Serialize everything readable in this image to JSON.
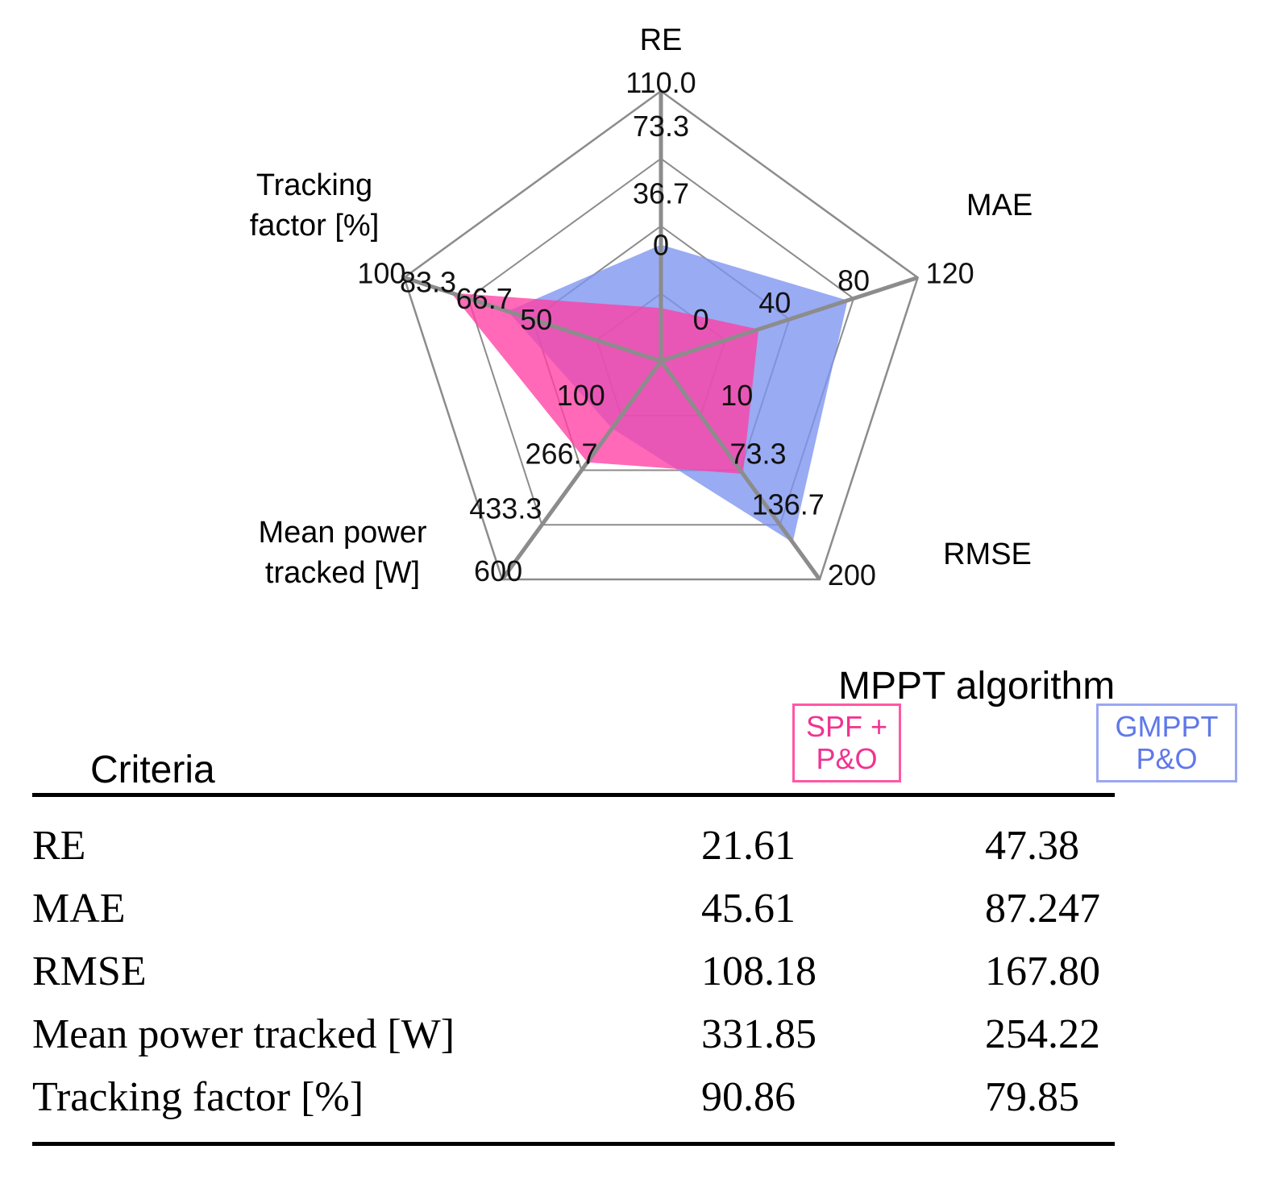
{
  "chart_data": {
    "type": "radar",
    "axes": [
      {
        "name": "RE",
        "ticks": [
          "0",
          "36.7",
          "73.3",
          "110.0"
        ],
        "min": 0,
        "max": 110
      },
      {
        "name": "MAE",
        "ticks": [
          "0",
          "40",
          "80",
          "120"
        ],
        "min": 0,
        "max": 120
      },
      {
        "name": "RMSE",
        "ticks": [
          "10",
          "73.3",
          "136.7",
          "200"
        ],
        "min": 10,
        "max": 200
      },
      {
        "name": "Mean power tracked [W]",
        "ticks": [
          "100",
          "266.7",
          "433.3",
          "600"
        ],
        "min": 100,
        "max": 600
      },
      {
        "name": "Tracking factor [%]",
        "ticks": [
          "50",
          "66.7",
          "83.3",
          "100"
        ],
        "min": 50,
        "max": 100
      }
    ],
    "axis_label_lines": [
      [
        "RE"
      ],
      [
        "MAE"
      ],
      [
        "RMSE"
      ],
      [
        "Mean power",
        "tracked [W]"
      ],
      [
        "Tracking",
        "factor [%]"
      ]
    ],
    "series": [
      {
        "name": "GMPPT P&O",
        "values": [
          47.38,
          87.247,
          167.8,
          254.22,
          79.85
        ],
        "color": "#7c93f0"
      },
      {
        "name": "SPF + P&O",
        "values": [
          21.61,
          45.61,
          108.18,
          331.85,
          90.86
        ],
        "color": "#ff3fa4"
      }
    ],
    "grid": true
  },
  "table": {
    "group_header": "MPPT algorithm",
    "criteria_header": "Criteria",
    "legend": [
      {
        "line1": "SPF +",
        "line2": "P&O",
        "color": "#f0338f"
      },
      {
        "line1": "GMPPT",
        "line2": "P&O",
        "color": "#5f78ea"
      }
    ],
    "rows": [
      {
        "criterion": "RE",
        "spf": "21.61",
        "gmppt": "47.38"
      },
      {
        "criterion": "MAE",
        "spf": "45.61",
        "gmppt": "87.247"
      },
      {
        "criterion": "RMSE",
        "spf": "108.18",
        "gmppt": "167.80"
      },
      {
        "criterion": "Mean power tracked [W]",
        "spf": "331.85",
        "gmppt": "254.22"
      },
      {
        "criterion": "Tracking factor [%]",
        "spf": "90.86",
        "gmppt": "79.85"
      }
    ]
  }
}
